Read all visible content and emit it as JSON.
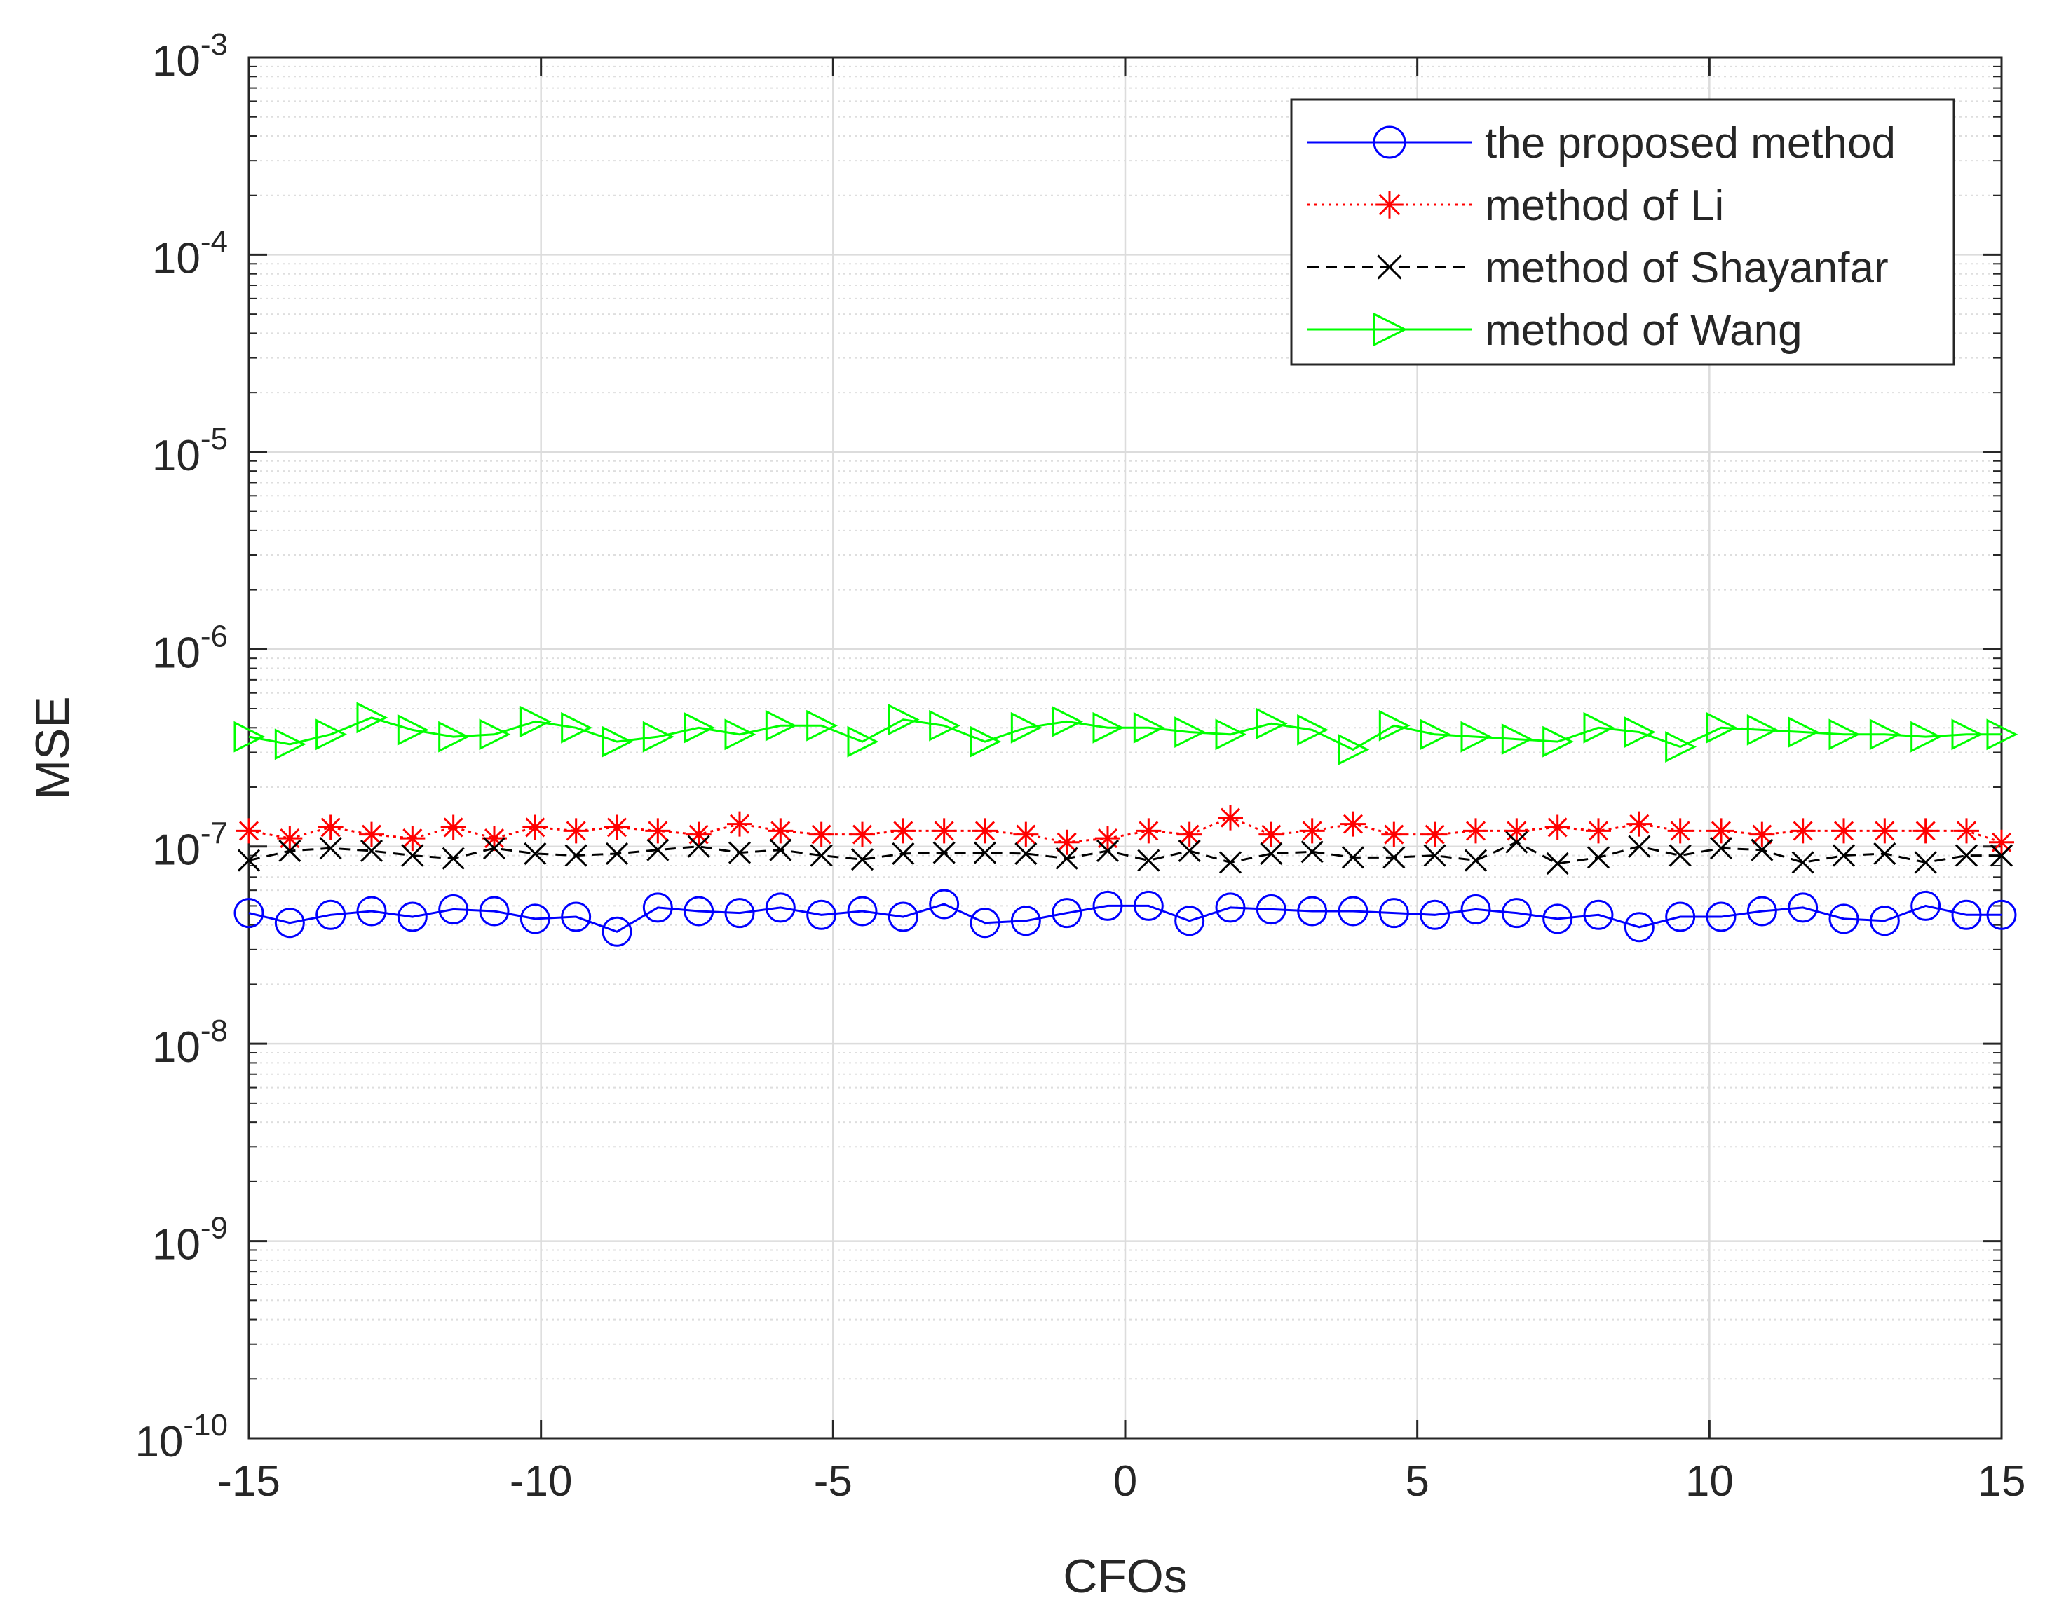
{
  "chart_data": {
    "type": "line",
    "title": "",
    "xlabel": "CFOs",
    "ylabel": "MSE",
    "xlim": [
      -15,
      15
    ],
    "ylim": [
      1e-10,
      0.001
    ],
    "yscale": "log",
    "grid": true,
    "legend_position": "top-right",
    "x_ticks": [
      -15,
      -10,
      -5,
      0,
      5,
      10,
      15
    ],
    "x_tick_labels": [
      "-15",
      "-10",
      "-5",
      "0",
      "5",
      "10",
      "15"
    ],
    "y_tick_exponents": [
      -10,
      -9,
      -8,
      -7,
      -6,
      -5,
      -4,
      -3
    ],
    "y_tick_base": "10",
    "x": [
      -15,
      -14.3,
      -13.6,
      -12.9,
      -12.2,
      -11.5,
      -10.8,
      -10.1,
      -9.4,
      -8.7,
      -8.0,
      -7.3,
      -6.6,
      -5.9,
      -5.2,
      -4.5,
      -3.8,
      -3.1,
      -2.4,
      -1.7,
      -1.0,
      -0.3,
      0.4,
      1.1,
      1.8,
      2.5,
      3.2,
      3.9,
      4.6,
      5.3,
      6.0,
      6.7,
      7.4,
      8.1,
      8.8,
      9.5,
      10.2,
      10.9,
      11.6,
      12.3,
      13.0,
      13.7,
      14.4,
      15
    ],
    "series": [
      {
        "name": "the proposed method",
        "color": "#0000ff",
        "line_style": "solid",
        "marker": "circle",
        "values": [
          4.6e-08,
          4.1e-08,
          4.5e-08,
          4.7e-08,
          4.4e-08,
          4.8e-08,
          4.7e-08,
          4.3e-08,
          4.4e-08,
          3.7e-08,
          4.9e-08,
          4.7e-08,
          4.6e-08,
          4.9e-08,
          4.5e-08,
          4.7e-08,
          4.4e-08,
          5.1e-08,
          4.1e-08,
          4.2e-08,
          4.6e-08,
          5e-08,
          5e-08,
          4.2e-08,
          4.9e-08,
          4.8e-08,
          4.7e-08,
          4.7e-08,
          4.6e-08,
          4.5e-08,
          4.8e-08,
          4.6e-08,
          4.3e-08,
          4.5e-08,
          3.9e-08,
          4.4e-08,
          4.4e-08,
          4.7e-08,
          4.9e-08,
          4.3e-08,
          4.2e-08,
          5e-08,
          4.5e-08,
          4.5e-08
        ]
      },
      {
        "name": "method of Li",
        "color": "#ff0000",
        "line_style": "dotted",
        "marker": "asterisk",
        "values": [
          1.2e-07,
          1.1e-07,
          1.25e-07,
          1.15e-07,
          1.1e-07,
          1.25e-07,
          1.1e-07,
          1.25e-07,
          1.2e-07,
          1.25e-07,
          1.2e-07,
          1.15e-07,
          1.3e-07,
          1.2e-07,
          1.15e-07,
          1.15e-07,
          1.2e-07,
          1.2e-07,
          1.2e-07,
          1.15e-07,
          1.05e-07,
          1.1e-07,
          1.2e-07,
          1.15e-07,
          1.4e-07,
          1.15e-07,
          1.2e-07,
          1.3e-07,
          1.15e-07,
          1.15e-07,
          1.2e-07,
          1.2e-07,
          1.25e-07,
          1.2e-07,
          1.3e-07,
          1.2e-07,
          1.2e-07,
          1.15e-07,
          1.2e-07,
          1.2e-07,
          1.2e-07,
          1.2e-07,
          1.2e-07,
          1.05e-07
        ]
      },
      {
        "name": "method of Shayanfar",
        "color": "#000000",
        "line_style": "dashed",
        "marker": "x",
        "values": [
          8.5e-08,
          9.5e-08,
          9.8e-08,
          9.5e-08,
          9e-08,
          8.7e-08,
          9.8e-08,
          9.2e-08,
          9e-08,
          9.2e-08,
          9.6e-08,
          1e-07,
          9.3e-08,
          9.6e-08,
          9e-08,
          8.6e-08,
          9.2e-08,
          9.3e-08,
          9.3e-08,
          9.2e-08,
          8.7e-08,
          9.5e-08,
          8.5e-08,
          9.5e-08,
          8.3e-08,
          9.2e-08,
          9.4e-08,
          8.8e-08,
          8.8e-08,
          9e-08,
          8.5e-08,
          1.05e-07,
          8.2e-08,
          8.8e-08,
          1e-07,
          9e-08,
          9.8e-08,
          9.6e-08,
          8.3e-08,
          9e-08,
          9.2e-08,
          8.3e-08,
          9e-08,
          9e-08
        ]
      },
      {
        "name": "method of Wang",
        "color": "#00ff00",
        "line_style": "solid",
        "marker": "triangle-right",
        "values": [
          3.6e-07,
          3.3e-07,
          3.7e-07,
          4.5e-07,
          3.9e-07,
          3.6e-07,
          3.7e-07,
          4.3e-07,
          4e-07,
          3.4e-07,
          3.6e-07,
          4e-07,
          3.7e-07,
          4.1e-07,
          4.1e-07,
          3.4e-07,
          4.4e-07,
          4.1e-07,
          3.4e-07,
          4e-07,
          4.3e-07,
          4e-07,
          4e-07,
          3.8e-07,
          3.7e-07,
          4.2e-07,
          3.9e-07,
          3.1e-07,
          4.1e-07,
          3.7e-07,
          3.6e-07,
          3.5e-07,
          3.4e-07,
          4e-07,
          3.8e-07,
          3.2e-07,
          4e-07,
          3.9e-07,
          3.8e-07,
          3.7e-07,
          3.7e-07,
          3.6e-07,
          3.7e-07,
          3.7e-07
        ]
      }
    ]
  }
}
